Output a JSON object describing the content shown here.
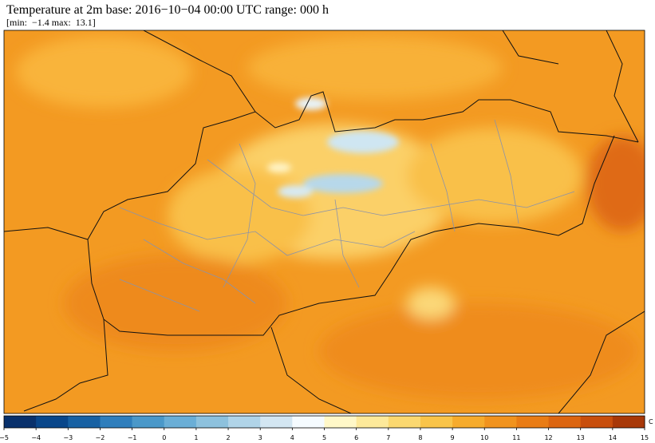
{
  "header": {
    "title": "Temperature at 2m base: 2016−10−04 00:00 UTC range: 000 h",
    "stats": "[min:  −1.4 max:  13.1]"
  },
  "colorbar": {
    "unit": "C",
    "range": [
      -5,
      15
    ],
    "colors": [
      "#08306b",
      "#08468a",
      "#1761a3",
      "#2f7ebc",
      "#4a98c9",
      "#6aaed6",
      "#8dc1dd",
      "#b0d4e8",
      "#d3e6f2",
      "#f5fbff",
      "#fff8c8",
      "#fde99a",
      "#fbd870",
      "#f9c449",
      "#f6ab2c",
      "#f1931e",
      "#e97c15",
      "#dc6510",
      "#c84e0c",
      "#a83808"
    ],
    "ticks": [
      {
        "value": -5,
        "label": "−5"
      },
      {
        "value": -4,
        "label": "−4"
      },
      {
        "value": -3,
        "label": "−3"
      },
      {
        "value": -2,
        "label": "−2"
      },
      {
        "value": -1,
        "label": "−1"
      },
      0,
      1,
      2,
      3,
      4,
      5,
      6,
      7,
      8,
      9,
      10,
      11,
      12,
      13,
      14,
      15
    ]
  }
}
